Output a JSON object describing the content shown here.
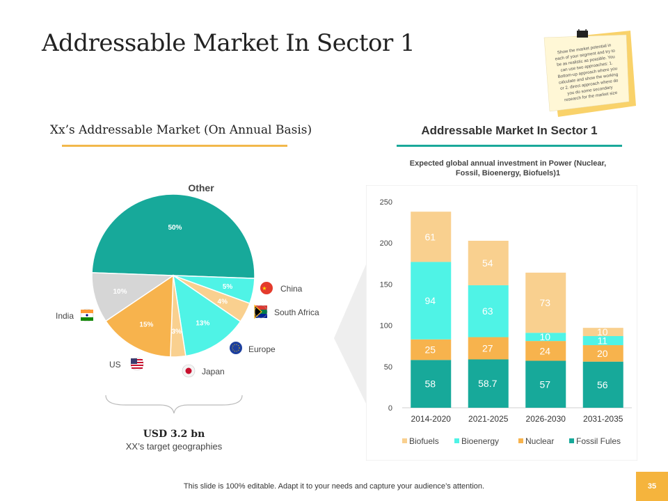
{
  "title": "Addressable Market In Sector 1",
  "note": {
    "lines": [
      "Show the market potential in",
      "each of your segment and try to",
      "be as realistic as possible. You",
      "can use two approaches: 1.",
      "Bottom-up approach where you",
      "calculate and show the working",
      "or 2. direct approach where do",
      "you do some secondary",
      "research for the market size"
    ]
  },
  "left": {
    "heading": "Xx’s Addressable Market (On Annual Basis)",
    "usd": "USD 3.2 bn",
    "sub": "XX’s  target geographies"
  },
  "right": {
    "heading": "Addressable Market In Sector 1"
  },
  "footer": "This slide is 100% editable. Adapt it to your needs and capture your audience’s attention.",
  "page_number": "35",
  "colors": {
    "teal": "#17a99a",
    "cyan": "#4ff3e6",
    "orange": "#f7b34d",
    "peach": "#f9d08f",
    "grey": "#d6d6d6",
    "gold": "#f2b84b"
  },
  "chart_data": [
    {
      "type": "pie",
      "title": "",
      "slices": [
        {
          "name": "Other",
          "value": 50,
          "label": "50%",
          "color": "#17a99a"
        },
        {
          "name": "China",
          "value": 5,
          "label": "5%",
          "color": "#4ff3e6"
        },
        {
          "name": "South Africa",
          "value": 4,
          "label": "4%",
          "color": "#f9d08f"
        },
        {
          "name": "Europe",
          "value": 13,
          "label": "13%",
          "color": "#4ff3e6"
        },
        {
          "name": "Japan",
          "value": 3,
          "label": "3%",
          "color": "#f9d08f"
        },
        {
          "name": "US",
          "value": 15,
          "label": "15%",
          "color": "#f7b34d"
        },
        {
          "name": "India",
          "value": 10,
          "label": "10%",
          "color": "#d6d6d6"
        }
      ],
      "region_labels": {
        "other": "Other",
        "china": "China",
        "south_africa": "South Africa",
        "europe": "Europe",
        "japan": "Japan",
        "us": "US",
        "india": "India"
      }
    },
    {
      "type": "bar",
      "stacked": true,
      "title": "Expected global annual investment in Power (Nuclear, Fossil, Bioenergy, Biofuels)1",
      "title_lines": [
        "Expected global annual investment in Power (Nuclear,",
        "Fossil, Bioenergy, Biofuels)1"
      ],
      "categories": [
        "2014-2020",
        "2021-2025",
        "2026-2030",
        "2031-2035"
      ],
      "series": [
        {
          "name": "Fossil Fules",
          "color": "#17a99a",
          "values": [
            58,
            58.7,
            57,
            56
          ],
          "labels": [
            "58",
            "58.7",
            "57",
            "56"
          ]
        },
        {
          "name": "Nuclear",
          "color": "#f7b34d",
          "values": [
            25,
            27,
            24,
            20
          ],
          "labels": [
            "25",
            "27",
            "24",
            "20"
          ]
        },
        {
          "name": "Bioenergy",
          "color": "#4ff3e6",
          "values": [
            94,
            63,
            10,
            11
          ],
          "labels": [
            "94",
            "63",
            "10",
            "11"
          ]
        },
        {
          "name": "Biofuels",
          "color": "#f9d08f",
          "values": [
            61,
            54,
            73,
            10
          ],
          "labels": [
            "61",
            "54",
            "73",
            "10"
          ]
        }
      ],
      "legend_order": [
        "Biofuels",
        "Bioenergy",
        "Nuclear",
        "Fossil Fules"
      ],
      "ylim": [
        0,
        250
      ],
      "yticks": [
        0,
        50,
        100,
        150,
        200,
        250
      ],
      "ytick_labels": [
        "0",
        "50",
        "100",
        "150",
        "200",
        "250"
      ],
      "xlabel": "",
      "ylabel": ""
    }
  ]
}
